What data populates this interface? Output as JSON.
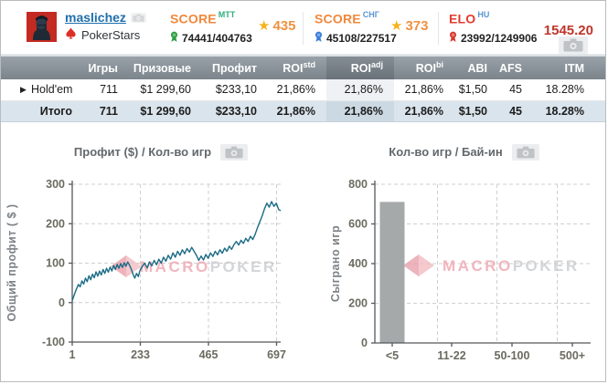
{
  "header": {
    "username": "maslichez",
    "site": "PokerStars",
    "score_mtt": {
      "label": "SCORE",
      "sup": "MTT",
      "ratio": "74441/404763",
      "stars": "435"
    },
    "score_cis": {
      "label": "SCORE",
      "sup": "СНГ",
      "ratio": "45108/227517",
      "stars": "373"
    },
    "elo": {
      "label": "ELO",
      "sup": "HU",
      "ratio": "23992/1249906",
      "value": "1545.20"
    },
    "star_glyph": "★"
  },
  "table": {
    "columns": {
      "games": "Игры",
      "prizes": "Призовые",
      "profit": "Профит",
      "roi_base": "ROI",
      "roi_std_sup": "std",
      "roi_adj_sup": "adj",
      "roi_bi_sup": "bi",
      "abi": "ABI",
      "afs": "AFS",
      "itm": "ITM"
    },
    "expander_glyph": "▶",
    "rows": [
      {
        "label": "Hold'em",
        "games": "711",
        "prizes": "$1 299,60",
        "profit": "$233,10",
        "roi_std": "21,86%",
        "roi_adj": "21,86%",
        "roi_bi": "21,86%",
        "abi": "$1,50",
        "afs": "45",
        "itm": "18.28%"
      },
      {
        "label": "Итого",
        "games": "711",
        "prizes": "$1 299,60",
        "profit": "$233,10",
        "roi_std": "21,86%",
        "roi_adj": "21,86%",
        "roi_bi": "21,86%",
        "abi": "$1,50",
        "afs": "45",
        "itm": "18.28%"
      }
    ]
  },
  "watermark": {
    "macro": "MACRO",
    "poker": "POKER"
  },
  "colors": {
    "line": "#1a6b85",
    "bar": "#a6a9aa",
    "green": "#2aa565",
    "score_orange": "#f0883b",
    "elo_red": "#e23b2e",
    "link_blue": "#1f6fad"
  },
  "chart_data": [
    {
      "type": "line",
      "title": "Профит ($) / Кол-во игр",
      "ylabel": "Общий профит ( $ )",
      "xlabel": "",
      "xlim": [
        1,
        711
      ],
      "ylim": [
        -100,
        300
      ],
      "xticks": [
        1,
        233,
        465,
        697
      ],
      "yticks": [
        -100,
        0,
        100,
        200,
        300
      ],
      "grid": true,
      "line_color": "#1a6b85",
      "x": [
        1,
        8,
        15,
        22,
        28,
        34,
        40,
        46,
        52,
        58,
        64,
        70,
        76,
        82,
        88,
        94,
        100,
        106,
        112,
        118,
        124,
        130,
        136,
        142,
        148,
        154,
        160,
        166,
        172,
        178,
        184,
        190,
        196,
        202,
        208,
        214,
        220,
        226,
        232,
        240,
        248,
        256,
        264,
        272,
        280,
        288,
        296,
        304,
        312,
        320,
        328,
        336,
        344,
        352,
        360,
        368,
        376,
        384,
        392,
        400,
        408,
        416,
        424,
        432,
        440,
        448,
        456,
        464,
        472,
        480,
        488,
        496,
        504,
        512,
        520,
        528,
        536,
        544,
        552,
        560,
        568,
        576,
        584,
        592,
        600,
        608,
        616,
        624,
        632,
        640,
        648,
        656,
        664,
        672,
        680,
        688,
        696,
        704,
        711
      ],
      "y": [
        5,
        20,
        34,
        46,
        40,
        55,
        47,
        62,
        53,
        68,
        58,
        72,
        63,
        78,
        67,
        80,
        70,
        84,
        74,
        87,
        77,
        90,
        80,
        94,
        84,
        97,
        87,
        99,
        89,
        101,
        92,
        103,
        95,
        85,
        72,
        62,
        74,
        66,
        82,
        92,
        100,
        88,
        103,
        93,
        107,
        96,
        110,
        100,
        115,
        105,
        120,
        110,
        126,
        115,
        130,
        120,
        134,
        124,
        137,
        128,
        140,
        130,
        120,
        107,
        118,
        108,
        122,
        112,
        126,
        117,
        130,
        121,
        134,
        125,
        138,
        130,
        143,
        135,
        147,
        155,
        146,
        158,
        150,
        163,
        155,
        168,
        160,
        173,
        190,
        205,
        220,
        238,
        252,
        242,
        256,
        244,
        252,
        236,
        233
      ]
    },
    {
      "type": "bar",
      "title": "Кол-во игр / Бай-ин",
      "ylabel": "Сыграно игр",
      "xlabel": "",
      "categories": [
        "<5",
        "11-22",
        "50-100",
        "500+"
      ],
      "values": [
        711,
        0,
        0,
        0
      ],
      "ylim": [
        0,
        800
      ],
      "yticks": [
        0,
        200,
        400,
        600,
        800
      ],
      "grid": true,
      "bar_color": "#a6a9aa"
    }
  ]
}
